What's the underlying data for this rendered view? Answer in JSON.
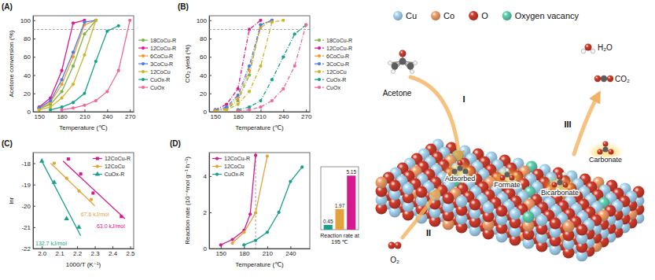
{
  "chart_data": [
    {
      "type": "line",
      "title": "(A)",
      "x_label": "Temperature (℃)",
      "y_label": "Acetone conversion (%)",
      "xlim": [
        142,
        275
      ],
      "xticks": [
        150,
        180,
        210,
        240,
        270
      ],
      "ylim": [
        0,
        105
      ],
      "yticks": [
        0,
        20,
        40,
        60,
        80,
        100
      ],
      "reference_line": 90,
      "legend": "right",
      "marker": "circle",
      "line_style": "solid",
      "series": [
        {
          "name": "18CoCu-R",
          "color": "#7cb342",
          "x": [
            150,
            165,
            180,
            195,
            210,
            225
          ],
          "values": [
            3,
            8,
            22,
            50,
            85,
            100
          ]
        },
        {
          "name": "12CoCu-R",
          "color": "#e0198e",
          "x": [
            150,
            165,
            180,
            195,
            210
          ],
          "values": [
            5,
            15,
            45,
            97,
            100
          ]
        },
        {
          "name": "6CoCu-R",
          "color": "#f39c2a",
          "x": [
            150,
            165,
            180,
            195,
            210,
            225
          ],
          "values": [
            3,
            10,
            30,
            60,
            95,
            100
          ]
        },
        {
          "name": "3CoCu-R",
          "color": "#4a7ee6",
          "x": [
            150,
            165,
            180,
            195,
            210,
            225
          ],
          "values": [
            4,
            12,
            35,
            65,
            98,
            100
          ]
        },
        {
          "name": "12CoCu",
          "color": "#cdb52c",
          "x": [
            150,
            165,
            180,
            195,
            210,
            225
          ],
          "values": [
            2,
            5,
            15,
            30,
            62,
            100
          ]
        },
        {
          "name": "CuOx-R",
          "color": "#17a08c",
          "x": [
            165,
            180,
            195,
            210,
            225,
            240,
            255
          ],
          "values": [
            2,
            5,
            10,
            20,
            55,
            88,
            94
          ]
        },
        {
          "name": "CuOx",
          "color": "#f2669c",
          "x": [
            180,
            195,
            210,
            225,
            240,
            255,
            270
          ],
          "values": [
            2,
            4,
            7,
            12,
            22,
            45,
            100
          ]
        }
      ]
    },
    {
      "type": "line",
      "title": "(B)",
      "x_label": "Temperature (℃)",
      "y_label": "CO₂ yield (%)",
      "xlim": [
        142,
        275
      ],
      "xticks": [
        150,
        180,
        210,
        240,
        270
      ],
      "ylim": [
        0,
        105
      ],
      "yticks": [
        0,
        20,
        40,
        60,
        80,
        100
      ],
      "reference_line": 90,
      "legend": "right",
      "marker": "circle",
      "line_style": "dashdot",
      "series": [
        {
          "name": "18CoCu-R",
          "color": "#7cb342",
          "x": [
            150,
            165,
            180,
            195,
            210,
            225
          ],
          "values": [
            1,
            3,
            12,
            40,
            95,
            100
          ]
        },
        {
          "name": "12CoCu-R",
          "color": "#e0198e",
          "x": [
            150,
            165,
            180,
            195,
            210
          ],
          "values": [
            2,
            8,
            25,
            90,
            100
          ]
        },
        {
          "name": "6CoCu-R",
          "color": "#f39c2a",
          "x": [
            150,
            165,
            180,
            195,
            210,
            225
          ],
          "values": [
            1,
            4,
            15,
            45,
            92,
            100
          ]
        },
        {
          "name": "3CoCu-R",
          "color": "#4a7ee6",
          "x": [
            150,
            165,
            180,
            195,
            210,
            225
          ],
          "values": [
            2,
            5,
            18,
            50,
            95,
            100
          ]
        },
        {
          "name": "12CoCu",
          "color": "#cdb52c",
          "x": [
            150,
            165,
            180,
            195,
            210,
            225,
            240
          ],
          "values": [
            1,
            2,
            8,
            22,
            50,
            98,
            100
          ]
        },
        {
          "name": "CuOx-R",
          "color": "#17a08c",
          "x": [
            180,
            195,
            210,
            225,
            240,
            255,
            270
          ],
          "values": [
            2,
            5,
            12,
            35,
            60,
            85,
            95
          ]
        },
        {
          "name": "CuOx",
          "color": "#f2669c",
          "x": [
            180,
            195,
            210,
            225,
            240,
            255,
            270
          ],
          "values": [
            1,
            2,
            5,
            12,
            25,
            50,
            95
          ]
        }
      ]
    },
    {
      "type": "scatter",
      "title": "(C)",
      "x_label": "1000/T (K⁻¹)",
      "y_label": "lnr",
      "xlim": [
        1.95,
        2.52
      ],
      "xticks": [
        {
          "value": 2,
          "label": "2.0"
        },
        2.1,
        2.2,
        2.3,
        2.4,
        2.5
      ],
      "ylim": [
        -22,
        -17.5
      ],
      "yticks": [
        -22,
        -21,
        -20,
        -19,
        -18
      ],
      "legend": "top-right",
      "line_style": "solid",
      "series": [
        {
          "name": "12CoCu-R",
          "color": "#d6198f",
          "marker": "square",
          "x": [
            2.15,
            2.22,
            2.29,
            2.45
          ],
          "values": [
            -17.8,
            -18.5,
            -19.4,
            -20.5
          ],
          "fit_x": [
            2.12,
            2.47
          ],
          "fit_values": [
            -17.9,
            -20.6
          ],
          "annotation": "63.0 kJ/mol"
        },
        {
          "name": "12CoCu",
          "color": "#e3a33c",
          "marker": "circle",
          "x": [
            2.07,
            2.14,
            2.21,
            2.28
          ],
          "values": [
            -18,
            -18.7,
            -19.3,
            -19.7
          ],
          "fit_x": [
            2.05,
            2.3
          ],
          "fit_values": [
            -18,
            -20
          ],
          "annotation": "67.6 kJ/mol"
        },
        {
          "name": "CuOx-R",
          "color": "#17a08c",
          "marker": "triangle",
          "x": [
            2,
            2.07,
            2.14,
            2.21
          ],
          "values": [
            -17.9,
            -18.9,
            -20.6,
            -21
          ],
          "fit_x": [
            2,
            2.22
          ],
          "fit_values": [
            -17.9,
            -21.4
          ],
          "annotation": "132.7 kJ/mol"
        }
      ]
    },
    {
      "type": "line",
      "title": "(D)",
      "x_label": "Temperature (℃)",
      "y_label": "Reaction rate (10⁻⁴mol g⁻¹ h⁻¹)",
      "xlim": [
        135,
        265
      ],
      "xticks": [
        150,
        180,
        210,
        240
      ],
      "ylim": [
        0,
        5.3
      ],
      "yticks": [
        0,
        2,
        4
      ],
      "reference_line_x": 195,
      "legend": "top-left",
      "marker": "circle",
      "line_style": "solid",
      "series": [
        {
          "name": "12CoCu-R",
          "color": "#d6198f",
          "x": [
            150,
            165,
            180,
            188,
            195
          ],
          "values": [
            0.2,
            0.5,
            1,
            1.9,
            5.15
          ]
        },
        {
          "name": "12CoCu",
          "color": "#e3a33c",
          "x": [
            165,
            180,
            195,
            210
          ],
          "values": [
            0.3,
            0.9,
            1.97,
            5.1
          ]
        },
        {
          "name": "CuOx-R",
          "color": "#17a08c",
          "x": [
            180,
            195,
            210,
            225,
            240,
            255
          ],
          "values": [
            0.2,
            0.45,
            0.9,
            2,
            3.7,
            4.5
          ]
        }
      ]
    },
    {
      "type": "bar",
      "title": "Reaction rate at 195 ℃",
      "categories": [
        null,
        null,
        null
      ],
      "values": [
        0.45,
        1.97,
        5.15
      ],
      "colors": [
        "#17a08c",
        "#e3a33c",
        "#d6198f"
      ],
      "ylim": [
        0,
        6
      ],
      "data_labels": true,
      "tick_labels": false
    }
  ],
  "diagram": {
    "legend": [
      {
        "label": "Cu",
        "color": "#a8d8f5"
      },
      {
        "label": "Co",
        "color": "#f6a06a"
      },
      {
        "label": "O",
        "color": "#d43c2c"
      },
      {
        "label": "Oxygen vacancy",
        "color": "#5fd3b3"
      }
    ],
    "species": [
      "Acetone",
      "O₂",
      "H₂O",
      "CO₂"
    ],
    "steps": [
      "I",
      "II",
      "III"
    ],
    "intermediates": [
      "Adsorbed",
      "Formate",
      "Bicarbonate",
      "Carbonate"
    ]
  }
}
